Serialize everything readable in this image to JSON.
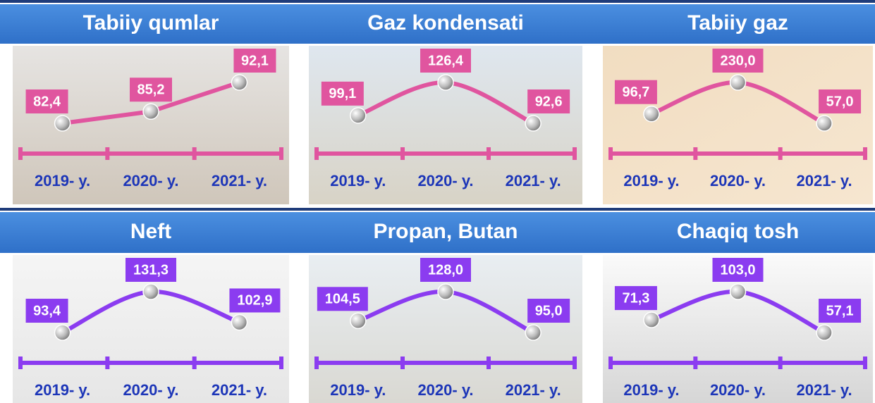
{
  "chart_data": [
    {
      "type": "line",
      "title": "Tabiiy qumlar",
      "categories": [
        "2019- y.",
        "2020- y.",
        "2021- y."
      ],
      "values": [
        82.4,
        85.2,
        92.1
      ],
      "value_labels": [
        "82,4",
        "85,2",
        "92,1"
      ],
      "color": "#e0559f",
      "smooth": false
    },
    {
      "type": "line",
      "title": "Gaz kondensati",
      "categories": [
        "2019- y.",
        "2020- y.",
        "2021- y."
      ],
      "values": [
        99.1,
        126.4,
        92.6
      ],
      "value_labels": [
        "99,1",
        "126,4",
        "92,6"
      ],
      "color": "#e0559f",
      "smooth": true
    },
    {
      "type": "line",
      "title": "Tabiiy gaz",
      "categories": [
        "2019- y.",
        "2020- y.",
        "2021- y."
      ],
      "values": [
        96.7,
        230.0,
        57.0
      ],
      "value_labels": [
        "96,7",
        "230,0",
        "57,0"
      ],
      "color": "#e0559f",
      "smooth": true
    },
    {
      "type": "line",
      "title": "Neft",
      "categories": [
        "2019- y.",
        "2020- y.",
        "2021- y."
      ],
      "values": [
        93.4,
        131.3,
        102.9
      ],
      "value_labels": [
        "93,4",
        "131,3",
        "102,9"
      ],
      "color": "#8b3cf0",
      "smooth": true
    },
    {
      "type": "line",
      "title": "Propan, Butan",
      "categories": [
        "2019- y.",
        "2020- y.",
        "2021- y."
      ],
      "values": [
        104.5,
        128.0,
        95.0
      ],
      "value_labels": [
        "104,5",
        "128,0",
        "95,0"
      ],
      "color": "#8b3cf0",
      "smooth": true
    },
    {
      "type": "line",
      "title": "Chaqiq tosh",
      "categories": [
        "2019- y.",
        "2020- y.",
        "2021- y."
      ],
      "values": [
        71.3,
        103.0,
        57.1
      ],
      "value_labels": [
        "71,3",
        "103,0",
        "57,1"
      ],
      "color": "#8b3cf0",
      "smooth": true
    }
  ]
}
